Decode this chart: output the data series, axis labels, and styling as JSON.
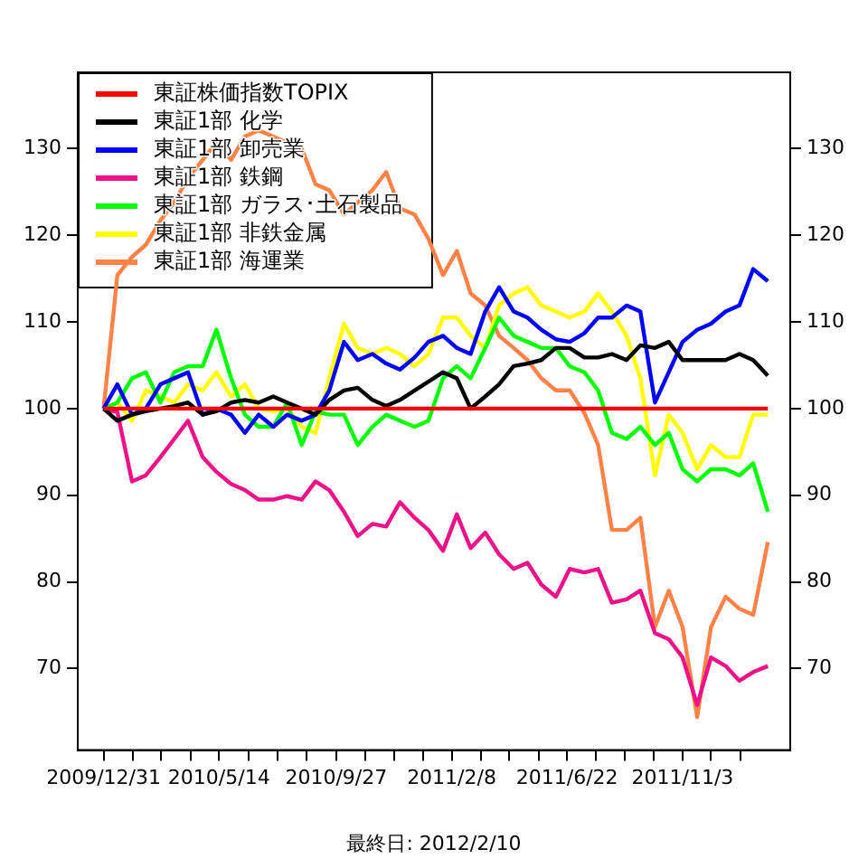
{
  "chart_data": {
    "type": "line",
    "annotations": [
      "最終日: 2012/2/10"
    ],
    "x": [
      "2009-12-31",
      "2010-01-16",
      "2010-02-02",
      "2010-02-18",
      "2010-03-07",
      "2010-03-23",
      "2010-04-08",
      "2010-04-25",
      "2010-05-11",
      "2010-05-28",
      "2010-06-13",
      "2010-06-29",
      "2010-07-16",
      "2010-08-01",
      "2010-08-18",
      "2010-09-03",
      "2010-09-19",
      "2010-10-06",
      "2010-10-22",
      "2010-11-08",
      "2010-11-24",
      "2010-12-10",
      "2010-12-27",
      "2011-01-12",
      "2011-01-29",
      "2011-02-14",
      "2011-03-02",
      "2011-03-19",
      "2011-04-04",
      "2011-04-21",
      "2011-05-07",
      "2011-05-23",
      "2011-06-09",
      "2011-06-25",
      "2011-07-12",
      "2011-07-28",
      "2011-08-13",
      "2011-08-30",
      "2011-09-15",
      "2011-10-02",
      "2011-10-18",
      "2011-11-03",
      "2011-11-20",
      "2011-12-06",
      "2011-12-23",
      "2012-01-08",
      "2012-01-24",
      "2012-02-10"
    ],
    "series": [
      {
        "name": "東証株価指数TOPIX",
        "color": "#ff0000",
        "values": [
          100,
          100,
          100,
          100,
          100,
          100,
          100,
          100,
          100,
          100,
          100,
          100,
          100,
          100,
          100,
          100,
          100,
          100,
          100,
          100,
          100,
          100,
          100,
          100,
          100,
          100,
          100,
          100,
          100,
          100,
          100,
          100,
          100,
          100,
          100,
          100,
          100,
          100,
          100,
          100,
          100,
          100,
          100,
          100,
          100,
          100,
          100,
          100
        ]
      },
      {
        "name": "東証1部 化学",
        "color": "#000000",
        "values": [
          100,
          98.6,
          99.3,
          99.7,
          100,
          100.3,
          100.7,
          99.3,
          99.7,
          100.7,
          101,
          100.7,
          101.4,
          100.7,
          100,
          99.3,
          101,
          102.1,
          102.4,
          101,
          100.3,
          101,
          102.1,
          103.1,
          104.2,
          103.5,
          100,
          101.4,
          102.8,
          104.9,
          105.2,
          105.6,
          107,
          107,
          105.9,
          105.9,
          106.3,
          105.6,
          107.3,
          107,
          107.7,
          105.6,
          105.6,
          105.6,
          105.6,
          106.3,
          105.6,
          103.8
        ]
      },
      {
        "name": "東証1部 卸売業",
        "color": "#0000ff",
        "values": [
          100,
          102.8,
          99.3,
          100,
          102.8,
          103.5,
          104.2,
          99.3,
          100,
          99.3,
          97.2,
          99.3,
          97.9,
          99.3,
          98.6,
          99.3,
          102.1,
          107.7,
          105.6,
          106.3,
          105.2,
          104.5,
          105.9,
          107.7,
          108.4,
          107,
          106.3,
          111.2,
          114,
          111.2,
          110.5,
          109.1,
          108,
          107.7,
          108.7,
          110.5,
          110.5,
          111.9,
          111.2,
          100.7,
          104.2,
          107.7,
          109.1,
          109.8,
          111.2,
          111.9,
          116.1,
          114.7
        ]
      },
      {
        "name": "東証1部 鉄鋼",
        "color": "#ee1289",
        "values": [
          100,
          99.6,
          91.6,
          92.3,
          94.4,
          96.5,
          98.6,
          94.4,
          92.7,
          91.3,
          90.6,
          89.5,
          89.5,
          89.9,
          89.5,
          91.6,
          90.6,
          88.1,
          85.3,
          86.7,
          86.4,
          89.2,
          87.4,
          86,
          83.6,
          87.8,
          83.9,
          85.7,
          83.2,
          81.5,
          82.2,
          79.7,
          78.3,
          81.5,
          81.1,
          81.5,
          77.6,
          78,
          79,
          74.1,
          73.4,
          71.3,
          65.8,
          71.3,
          70.3,
          68.6,
          69.6,
          70.3
        ]
      },
      {
        "name": "東証1部 ガラス･土石製品",
        "color": "#00ff00",
        "values": [
          100,
          100.7,
          103.5,
          104.2,
          100.7,
          104.2,
          104.9,
          104.9,
          109.1,
          103.5,
          99.3,
          97.9,
          97.9,
          100.7,
          95.8,
          99.7,
          99.3,
          99.3,
          95.8,
          97.9,
          99.3,
          98.6,
          97.9,
          98.6,
          103.5,
          104.9,
          103.5,
          107,
          110.5,
          108.4,
          107.7,
          107,
          107,
          104.9,
          104.2,
          102.1,
          97.2,
          96.5,
          97.9,
          95.8,
          97.2,
          93,
          91.6,
          93,
          93,
          92.3,
          93.7,
          88.1
        ]
      },
      {
        "name": "東証1部 非鉄金属",
        "color": "#ffff00",
        "values": [
          100,
          100.7,
          98.6,
          102.1,
          101.4,
          100.7,
          102.8,
          102.1,
          104.2,
          101.4,
          102.8,
          100,
          99.7,
          100,
          97.9,
          97.2,
          103.5,
          109.8,
          107,
          106.3,
          107,
          106.3,
          104.9,
          106.3,
          110.5,
          110.5,
          108.4,
          107,
          111.9,
          113.3,
          114,
          111.9,
          111.2,
          110.5,
          111.2,
          113.3,
          111.2,
          108.4,
          103.5,
          92.3,
          99.3,
          97.2,
          93,
          95.8,
          94.4,
          94.4,
          99.3,
          99.3
        ]
      },
      {
        "name": "東証1部 海運業",
        "color": "#ff8247",
        "values": [
          100,
          115.4,
          117.5,
          118.9,
          121.7,
          123.8,
          126.6,
          128.7,
          130.7,
          128.7,
          131.4,
          132.1,
          131.4,
          130.7,
          130,
          125.9,
          125.2,
          122.4,
          123.8,
          125.2,
          127.3,
          123.1,
          122.4,
          119.6,
          115.4,
          118.2,
          113.3,
          111.9,
          108.4,
          107,
          105.6,
          103.5,
          102.1,
          102.1,
          99.5,
          95.8,
          86,
          86,
          87.4,
          74.8,
          79,
          74.8,
          64.4,
          74.8,
          78.3,
          76.9,
          76.2,
          84.6
        ]
      }
    ],
    "xlim": [
      "2009-12-01",
      "2012-03-07"
    ],
    "xticks": [
      {
        "value": "2009-12-31",
        "label": "2009/12/31"
      },
      {
        "value": "2010-02-03",
        "label": null
      },
      {
        "value": "2010-03-08",
        "label": null
      },
      {
        "value": "2010-04-11",
        "label": null
      },
      {
        "value": "2010-05-14",
        "label": "2010/5/14"
      },
      {
        "value": "2010-06-17",
        "label": null
      },
      {
        "value": "2010-07-21",
        "label": null
      },
      {
        "value": "2010-08-24",
        "label": null
      },
      {
        "value": "2010-09-27",
        "label": "2010/9/27"
      },
      {
        "value": "2010-10-31",
        "label": null
      },
      {
        "value": "2010-12-03",
        "label": null
      },
      {
        "value": "2011-01-06",
        "label": null
      },
      {
        "value": "2011-02-08",
        "label": "2011/2/8"
      },
      {
        "value": "2011-03-14",
        "label": null
      },
      {
        "value": "2011-04-16",
        "label": null
      },
      {
        "value": "2011-05-20",
        "label": null
      },
      {
        "value": "2011-06-22",
        "label": "2011/6/22"
      },
      {
        "value": "2011-07-25",
        "label": null
      },
      {
        "value": "2011-08-28",
        "label": null
      },
      {
        "value": "2011-09-30",
        "label": null
      },
      {
        "value": "2011-11-03",
        "label": "2011/11/3"
      },
      {
        "value": "2011-12-06",
        "label": null
      },
      {
        "value": "2012-01-09",
        "label": null
      }
    ],
    "ylim": [
      60.6,
      138.8
    ],
    "yticks": [
      70,
      80,
      90,
      100,
      110,
      120,
      130
    ],
    "y2lim": [
      60.6,
      138.8
    ],
    "y2ticks": [
      70,
      80,
      90,
      100,
      110,
      120,
      130
    ],
    "legend": "top left",
    "marker": "none",
    "line_style": "solid"
  }
}
